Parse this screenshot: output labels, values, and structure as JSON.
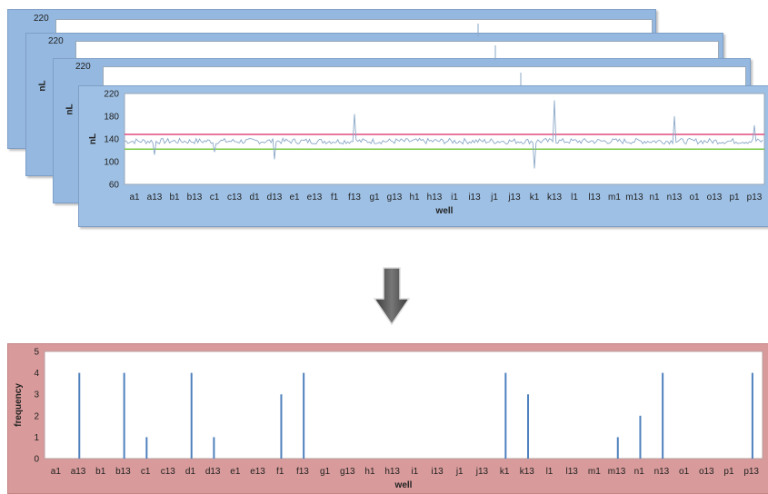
{
  "stacked_panels": [
    {
      "y_top_label": "220"
    },
    {
      "y_top_label": "220",
      "ylabel": "nL"
    },
    {
      "y_top_label": "220",
      "ylabel": "nL"
    }
  ],
  "arrow_icon": "down-arrow-icon",
  "colors": {
    "top_panel_bg": "#94b8df",
    "bottom_panel_bg": "#d89a9a",
    "volume_line": "#8aa7c7",
    "upper_limit": "#e0487a",
    "lower_limit": "#7ac943",
    "frequency_bars": "#4f81bd"
  },
  "chart_data": [
    {
      "type": "line",
      "ylabel": "nL",
      "xlabel": "well",
      "ylim": [
        60,
        220
      ],
      "yticks": [
        60,
        100,
        140,
        180,
        220
      ],
      "xticks": [
        "a1",
        "a13",
        "b1",
        "b13",
        "c1",
        "c13",
        "d1",
        "d13",
        "e1",
        "e13",
        "f1",
        "f13",
        "g1",
        "g13",
        "h1",
        "h13",
        "i1",
        "i13",
        "j1",
        "j13",
        "k1",
        "k13",
        "l1",
        "l13",
        "m1",
        "m13",
        "n1",
        "n13",
        "o1",
        "o13",
        "p1",
        "p13"
      ],
      "baseline": 136,
      "upper_limit": 148,
      "lower_limit": 122,
      "outliers": [
        {
          "x": "a13",
          "value": 112
        },
        {
          "x": "c1",
          "value": 117
        },
        {
          "x": "d13",
          "value": 104
        },
        {
          "x": "f13",
          "value": 184
        },
        {
          "x": "k1",
          "value": 88
        },
        {
          "x": "k13",
          "value": 208
        },
        {
          "x": "n13",
          "value": 180
        },
        {
          "x": "p13",
          "value": 164
        }
      ],
      "grid": false
    },
    {
      "type": "bar",
      "ylabel": "frequency",
      "xlabel": "well",
      "ylim": [
        0,
        5
      ],
      "yticks": [
        0,
        1,
        2,
        3,
        4,
        5
      ],
      "xticks": [
        "a1",
        "a13",
        "b1",
        "b13",
        "c1",
        "c13",
        "d1",
        "d13",
        "e1",
        "e13",
        "f1",
        "f13",
        "g1",
        "g13",
        "h1",
        "h13",
        "i1",
        "i13",
        "j1",
        "j13",
        "k1",
        "k13",
        "l1",
        "l13",
        "m1",
        "m13",
        "n1",
        "n13",
        "o1",
        "o13",
        "p1",
        "p13"
      ],
      "bars": [
        {
          "x": "a13",
          "value": 4
        },
        {
          "x": "b13",
          "value": 4
        },
        {
          "x": "c1",
          "value": 1
        },
        {
          "x": "d1",
          "value": 4
        },
        {
          "x": "d13",
          "value": 1
        },
        {
          "x": "f1",
          "value": 3
        },
        {
          "x": "f13",
          "value": 4
        },
        {
          "x": "k1",
          "value": 4
        },
        {
          "x": "k13",
          "value": 3
        },
        {
          "x": "m13",
          "value": 1
        },
        {
          "x": "n1",
          "value": 2
        },
        {
          "x": "n13",
          "value": 4
        },
        {
          "x": "p13",
          "value": 4
        }
      ],
      "grid": false
    }
  ]
}
